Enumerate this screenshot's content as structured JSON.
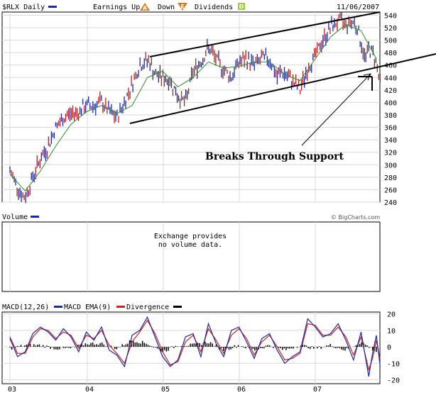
{
  "header": {
    "symbol_label": "$RLX Daily",
    "earnings_label": "Earnings Up",
    "earnings_up_glyph": "A",
    "down_label": "Down",
    "earnings_down_glyph": "E",
    "dividends_label": "Dividends",
    "dividends_glyph": "D",
    "date": "11/06/2007"
  },
  "watermark": "© BigCharts.com",
  "annotation": "Breaks Through Support",
  "colors": {
    "price_bar": "#1f2a9a",
    "price_bar_down": "#b22222",
    "moving_average": "#2e8b2e",
    "trend_lines": "#000000",
    "macd": "#1f2a9a",
    "macd_ema": "#cc2222",
    "divergence": "#000000",
    "earnings_up_marker": "#e07820",
    "dividends_marker": "#9ccc3c"
  },
  "volume_panel": {
    "title": "Volume",
    "message_line1": "Exchange provides",
    "message_line2": "no volume data."
  },
  "macd_panel": {
    "title_macd": "MACD(12,26)",
    "title_ema": "MACD EMA(9)",
    "title_div": "Divergence"
  },
  "chart_data": [
    {
      "type": "bar",
      "title": "$RLX Daily",
      "x_ticks": [
        "03",
        "04",
        "05",
        "06",
        "07"
      ],
      "y_ticks": [
        240,
        260,
        280,
        300,
        320,
        340,
        360,
        380,
        400,
        420,
        440,
        460,
        480,
        500,
        520,
        540
      ],
      "ylim": [
        240,
        545
      ],
      "xlim": [
        2003.0,
        2007.85
      ],
      "grid": true,
      "series": [
        {
          "name": "$RLX",
          "x": [
            2003.0,
            2003.08,
            2003.16,
            2003.2,
            2003.3,
            2003.4,
            2003.5,
            2003.6,
            2003.75,
            2003.9,
            2004.0,
            2004.1,
            2004.2,
            2004.3,
            2004.4,
            2004.5,
            2004.6,
            2004.7,
            2004.82,
            2004.9,
            2005.0,
            2005.1,
            2005.2,
            2005.3,
            2005.4,
            2005.5,
            2005.6,
            2005.75,
            2005.9,
            2006.0,
            2006.1,
            2006.2,
            2006.3,
            2006.4,
            2006.5,
            2006.55,
            2006.6,
            2006.7,
            2006.8,
            2006.9,
            2007.0,
            2007.1,
            2007.2,
            2007.3,
            2007.4,
            2007.5,
            2007.55,
            2007.6,
            2007.65,
            2007.7,
            2007.75,
            2007.8,
            2007.85
          ],
          "values": [
            290,
            270,
            250,
            248,
            280,
            310,
            330,
            360,
            380,
            385,
            395,
            395,
            400,
            385,
            375,
            400,
            430,
            460,
            468,
            445,
            440,
            435,
            410,
            400,
            450,
            465,
            488,
            460,
            440,
            465,
            470,
            460,
            470,
            470,
            440,
            450,
            445,
            435,
            420,
            455,
            475,
            500,
            520,
            530,
            525,
            530,
            520,
            495,
            470,
            485,
            480,
            465,
            430
          ]
        },
        {
          "name": "Moving Average",
          "x": [
            2003.0,
            2003.2,
            2003.4,
            2003.6,
            2003.8,
            2004.0,
            2004.2,
            2004.4,
            2004.6,
            2004.8,
            2005.0,
            2005.2,
            2005.4,
            2005.6,
            2005.8,
            2006.0,
            2006.2,
            2006.4,
            2006.6,
            2006.8,
            2007.0,
            2007.2,
            2007.4,
            2007.6,
            2007.8
          ],
          "values": [
            285,
            258,
            290,
            330,
            365,
            385,
            395,
            382,
            395,
            440,
            450,
            425,
            440,
            465,
            455,
            458,
            465,
            465,
            445,
            435,
            470,
            505,
            525,
            515,
            470
          ]
        }
      ],
      "annotations": [
        "Breaks Through Support"
      ]
    },
    {
      "type": "line",
      "title": "MACD(12,26)",
      "x_ticks": [
        "03",
        "04",
        "05",
        "06",
        "07"
      ],
      "y_ticks": [
        20,
        10,
        0,
        -10,
        -20
      ],
      "ylim": [
        -22,
        22
      ],
      "grid": true,
      "series": [
        {
          "name": "MACD(12,26)",
          "x": [
            2003.0,
            2003.1,
            2003.2,
            2003.3,
            2003.4,
            2003.5,
            2003.6,
            2003.7,
            2003.8,
            2003.9,
            2004.0,
            2004.1,
            2004.2,
            2004.3,
            2004.4,
            2004.5,
            2004.6,
            2004.7,
            2004.8,
            2004.9,
            2005.0,
            2005.1,
            2005.2,
            2005.3,
            2005.4,
            2005.5,
            2005.6,
            2005.7,
            2005.8,
            2005.9,
            2006.0,
            2006.1,
            2006.2,
            2006.3,
            2006.4,
            2006.5,
            2006.6,
            2006.7,
            2006.8,
            2006.9,
            2007.0,
            2007.1,
            2007.2,
            2007.3,
            2007.4,
            2007.5,
            2007.6,
            2007.7,
            2007.75,
            2007.8,
            2007.85
          ],
          "values": [
            5,
            -6,
            -3,
            8,
            12,
            9,
            4,
            11,
            6,
            -3,
            9,
            4,
            12,
            -2,
            -5,
            -12,
            7,
            10,
            18,
            6,
            -6,
            -12,
            -8,
            6,
            8,
            -6,
            14,
            2,
            -6,
            10,
            12,
            3,
            -7,
            5,
            8,
            -2,
            -10,
            -6,
            -3,
            17,
            12,
            6,
            8,
            14,
            4,
            -8,
            9,
            -18,
            -4,
            7,
            -12
          ]
        },
        {
          "name": "MACD EMA(9)",
          "x": [
            2003.0,
            2003.1,
            2003.2,
            2003.3,
            2003.4,
            2003.5,
            2003.6,
            2003.7,
            2003.8,
            2003.9,
            2004.0,
            2004.1,
            2004.2,
            2004.3,
            2004.4,
            2004.5,
            2004.6,
            2004.7,
            2004.8,
            2004.9,
            2005.0,
            2005.1,
            2005.2,
            2005.3,
            2005.4,
            2005.5,
            2005.6,
            2005.7,
            2005.8,
            2005.9,
            2006.0,
            2006.1,
            2006.2,
            2006.3,
            2006.4,
            2006.5,
            2006.6,
            2006.7,
            2006.8,
            2006.9,
            2007.0,
            2007.1,
            2007.2,
            2007.3,
            2007.4,
            2007.5,
            2007.6,
            2007.7,
            2007.75,
            2007.8,
            2007.85
          ],
          "values": [
            6,
            -4,
            -4,
            6,
            11,
            10,
            5,
            9,
            7,
            -1,
            7,
            5,
            10,
            1,
            -4,
            -10,
            3,
            9,
            16,
            8,
            -3,
            -11,
            -9,
            3,
            7,
            -3,
            11,
            4,
            -4,
            7,
            11,
            5,
            -5,
            3,
            7,
            0,
            -8,
            -7,
            -4,
            14,
            13,
            7,
            7,
            12,
            6,
            -5,
            6,
            -14,
            -7,
            4,
            -8
          ]
        },
        {
          "name": "Divergence",
          "x": [
            2003.0,
            2003.2,
            2003.4,
            2003.6,
            2003.8,
            2004.0,
            2004.2,
            2004.4,
            2004.6,
            2004.8,
            2005.0,
            2005.2,
            2005.4,
            2005.6,
            2005.8,
            2006.0,
            2006.2,
            2006.4,
            2006.6,
            2006.8,
            2007.0,
            2007.2,
            2007.4,
            2007.6,
            2007.8
          ],
          "values": [
            -1,
            1,
            1,
            -1,
            -1,
            2,
            2,
            -1,
            4,
            2,
            -3,
            1,
            1,
            3,
            -2,
            1,
            -2,
            1,
            -2,
            1,
            -1,
            1,
            -2,
            3,
            -3
          ]
        }
      ]
    }
  ]
}
